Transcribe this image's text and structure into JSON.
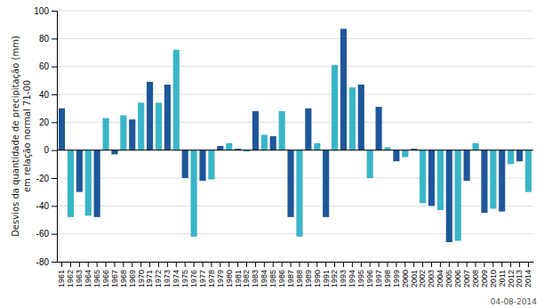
{
  "chart_data": {
    "type": "bar",
    "categories": [
      "1961",
      "1962",
      "1963",
      "1964",
      "1965",
      "1966",
      "1967",
      "1968",
      "1969",
      "1970",
      "1971",
      "1972",
      "1973",
      "1974",
      "1975",
      "1976",
      "1977",
      "1978",
      "1979",
      "1980",
      "1981",
      "1982",
      "1983",
      "1984",
      "1985",
      "1986",
      "1987",
      "1988",
      "1989",
      "1990",
      "1991",
      "1992",
      "1993",
      "1994",
      "1995",
      "1996",
      "1997",
      "1998",
      "1999",
      "2000",
      "2001",
      "2002",
      "2003",
      "2004",
      "2005",
      "2006",
      "2007",
      "2008",
      "2009",
      "2010",
      "2011",
      "2012",
      "2013",
      "2014"
    ],
    "values": [
      30,
      -48,
      -30,
      -47,
      -48,
      23,
      -3,
      25,
      22,
      34,
      49,
      34,
      47,
      72,
      -20,
      -62,
      -22,
      -21,
      3,
      5,
      1,
      -1,
      28,
      11,
      10,
      28,
      -48,
      -62,
      30,
      5,
      -48,
      61,
      87,
      45,
      47,
      -20,
      31,
      2,
      -8,
      -5,
      1,
      -38,
      -40,
      -43,
      -66,
      -65,
      -22,
      5,
      -45,
      -42,
      -44,
      -10,
      -8,
      -30
    ],
    "colors": [
      "#1e5799",
      "#3ab5c8",
      "#1e5799",
      "#3ab5c8",
      "#1e5799",
      "#3ab5c8",
      "#1e5799",
      "#3ab5c8",
      "#1e5799",
      "#3ab5c8",
      "#1e5799",
      "#3ab5c8",
      "#1e5799",
      "#3ab5c8",
      "#1e5799",
      "#3ab5c8",
      "#1e5799",
      "#3ab5c8",
      "#1e5799",
      "#3ab5c8",
      "#1e5799",
      "#3ab5c8",
      "#1e5799",
      "#3ab5c8",
      "#1e5799",
      "#3ab5c8",
      "#1e5799",
      "#3ab5c8",
      "#1e5799",
      "#3ab5c8",
      "#1e5799",
      "#3ab5c8",
      "#1e5799",
      "#3ab5c8",
      "#1e5799",
      "#3ab5c8",
      "#1e5799",
      "#3ab5c8",
      "#1e5799",
      "#3ab5c8",
      "#1e5799",
      "#3ab5c8",
      "#1e5799",
      "#3ab5c8",
      "#1e5799",
      "#3ab5c8",
      "#1e5799",
      "#3ab5c8",
      "#1e5799",
      "#3ab5c8",
      "#1e5799",
      "#3ab5c8",
      "#1e5799",
      "#3ab5c8"
    ],
    "ylabel": "Desvios da quantidade de precipitação (mm)\nem relação normal 71-00",
    "ylim": [
      -80,
      100
    ],
    "yticks": [
      -80,
      -60,
      -40,
      -20,
      0,
      20,
      40,
      60,
      80,
      100
    ],
    "grid": true,
    "annotations": [
      "04-08-2014"
    ]
  }
}
